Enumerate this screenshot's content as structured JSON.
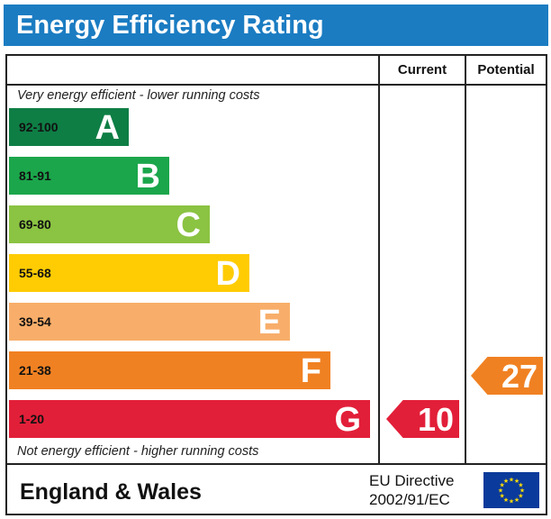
{
  "title": "Energy Efficiency Rating",
  "columns": {
    "current": "Current",
    "potential": "Potential"
  },
  "captions": {
    "top": "Very energy efficient - lower running costs",
    "bottom": "Not energy efficient - higher running costs"
  },
  "bands": [
    {
      "range": "92-100",
      "letter": "A",
      "color": "#0e7e45"
    },
    {
      "range": "81-91",
      "letter": "B",
      "color": "#1ba64b"
    },
    {
      "range": "69-80",
      "letter": "C",
      "color": "#8bc342"
    },
    {
      "range": "55-68",
      "letter": "D",
      "color": "#ffcc03"
    },
    {
      "range": "39-54",
      "letter": "E",
      "color": "#f8ae6a"
    },
    {
      "range": "21-38",
      "letter": "F",
      "color": "#f08122"
    },
    {
      "range": "1-20",
      "letter": "G",
      "color": "#e21f39"
    }
  ],
  "current_rating": {
    "value": "10",
    "band": "G",
    "color": "#e21f39"
  },
  "potential_rating": {
    "value": "27",
    "band": "F",
    "color": "#f08122"
  },
  "footer": {
    "region": "England & Wales",
    "directive_line1": "EU Directive",
    "directive_line2": "2002/91/EC",
    "flag_colors": {
      "field": "#0a3a9b",
      "stars": "#ffdd00"
    }
  }
}
